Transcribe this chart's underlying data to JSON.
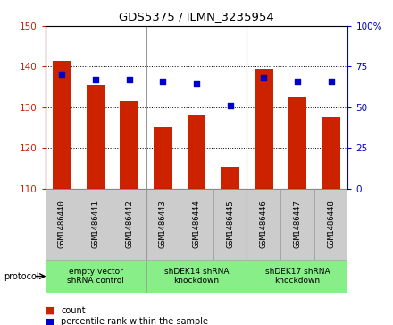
{
  "title": "GDS5375 / ILMN_3235954",
  "samples": [
    "GSM1486440",
    "GSM1486441",
    "GSM1486442",
    "GSM1486443",
    "GSM1486444",
    "GSM1486445",
    "GSM1486446",
    "GSM1486447",
    "GSM1486448"
  ],
  "counts": [
    141.5,
    135.5,
    131.5,
    125.0,
    128.0,
    115.5,
    139.5,
    132.5,
    127.5
  ],
  "percentile_ranks": [
    70,
    67,
    67,
    66,
    65,
    51,
    68,
    66,
    66
  ],
  "ylim_left": [
    110,
    150
  ],
  "ylim_right": [
    0,
    100
  ],
  "yticks_left": [
    110,
    120,
    130,
    140,
    150
  ],
  "yticks_right": [
    0,
    25,
    50,
    75,
    100
  ],
  "bar_color": "#cc2200",
  "dot_color": "#0000cc",
  "grid_color": "#000000",
  "groups": [
    {
      "label": "empty vector\nshRNA control",
      "start": 0,
      "end": 3,
      "color": "#88ee88"
    },
    {
      "label": "shDEK14 shRNA\nknockdown",
      "start": 3,
      "end": 6,
      "color": "#88ee88"
    },
    {
      "label": "shDEK17 shRNA\nknockdown",
      "start": 6,
      "end": 9,
      "color": "#88ee88"
    }
  ],
  "legend_count_label": "count",
  "legend_percentile_label": "percentile rank within the sample",
  "protocol_label": "protocol",
  "bar_width": 0.55,
  "background_color": "#ffffff",
  "plot_bg_color": "#ffffff",
  "tick_area_bg": "#cccccc",
  "separator_color": "#999999",
  "spine_color": "#999999"
}
